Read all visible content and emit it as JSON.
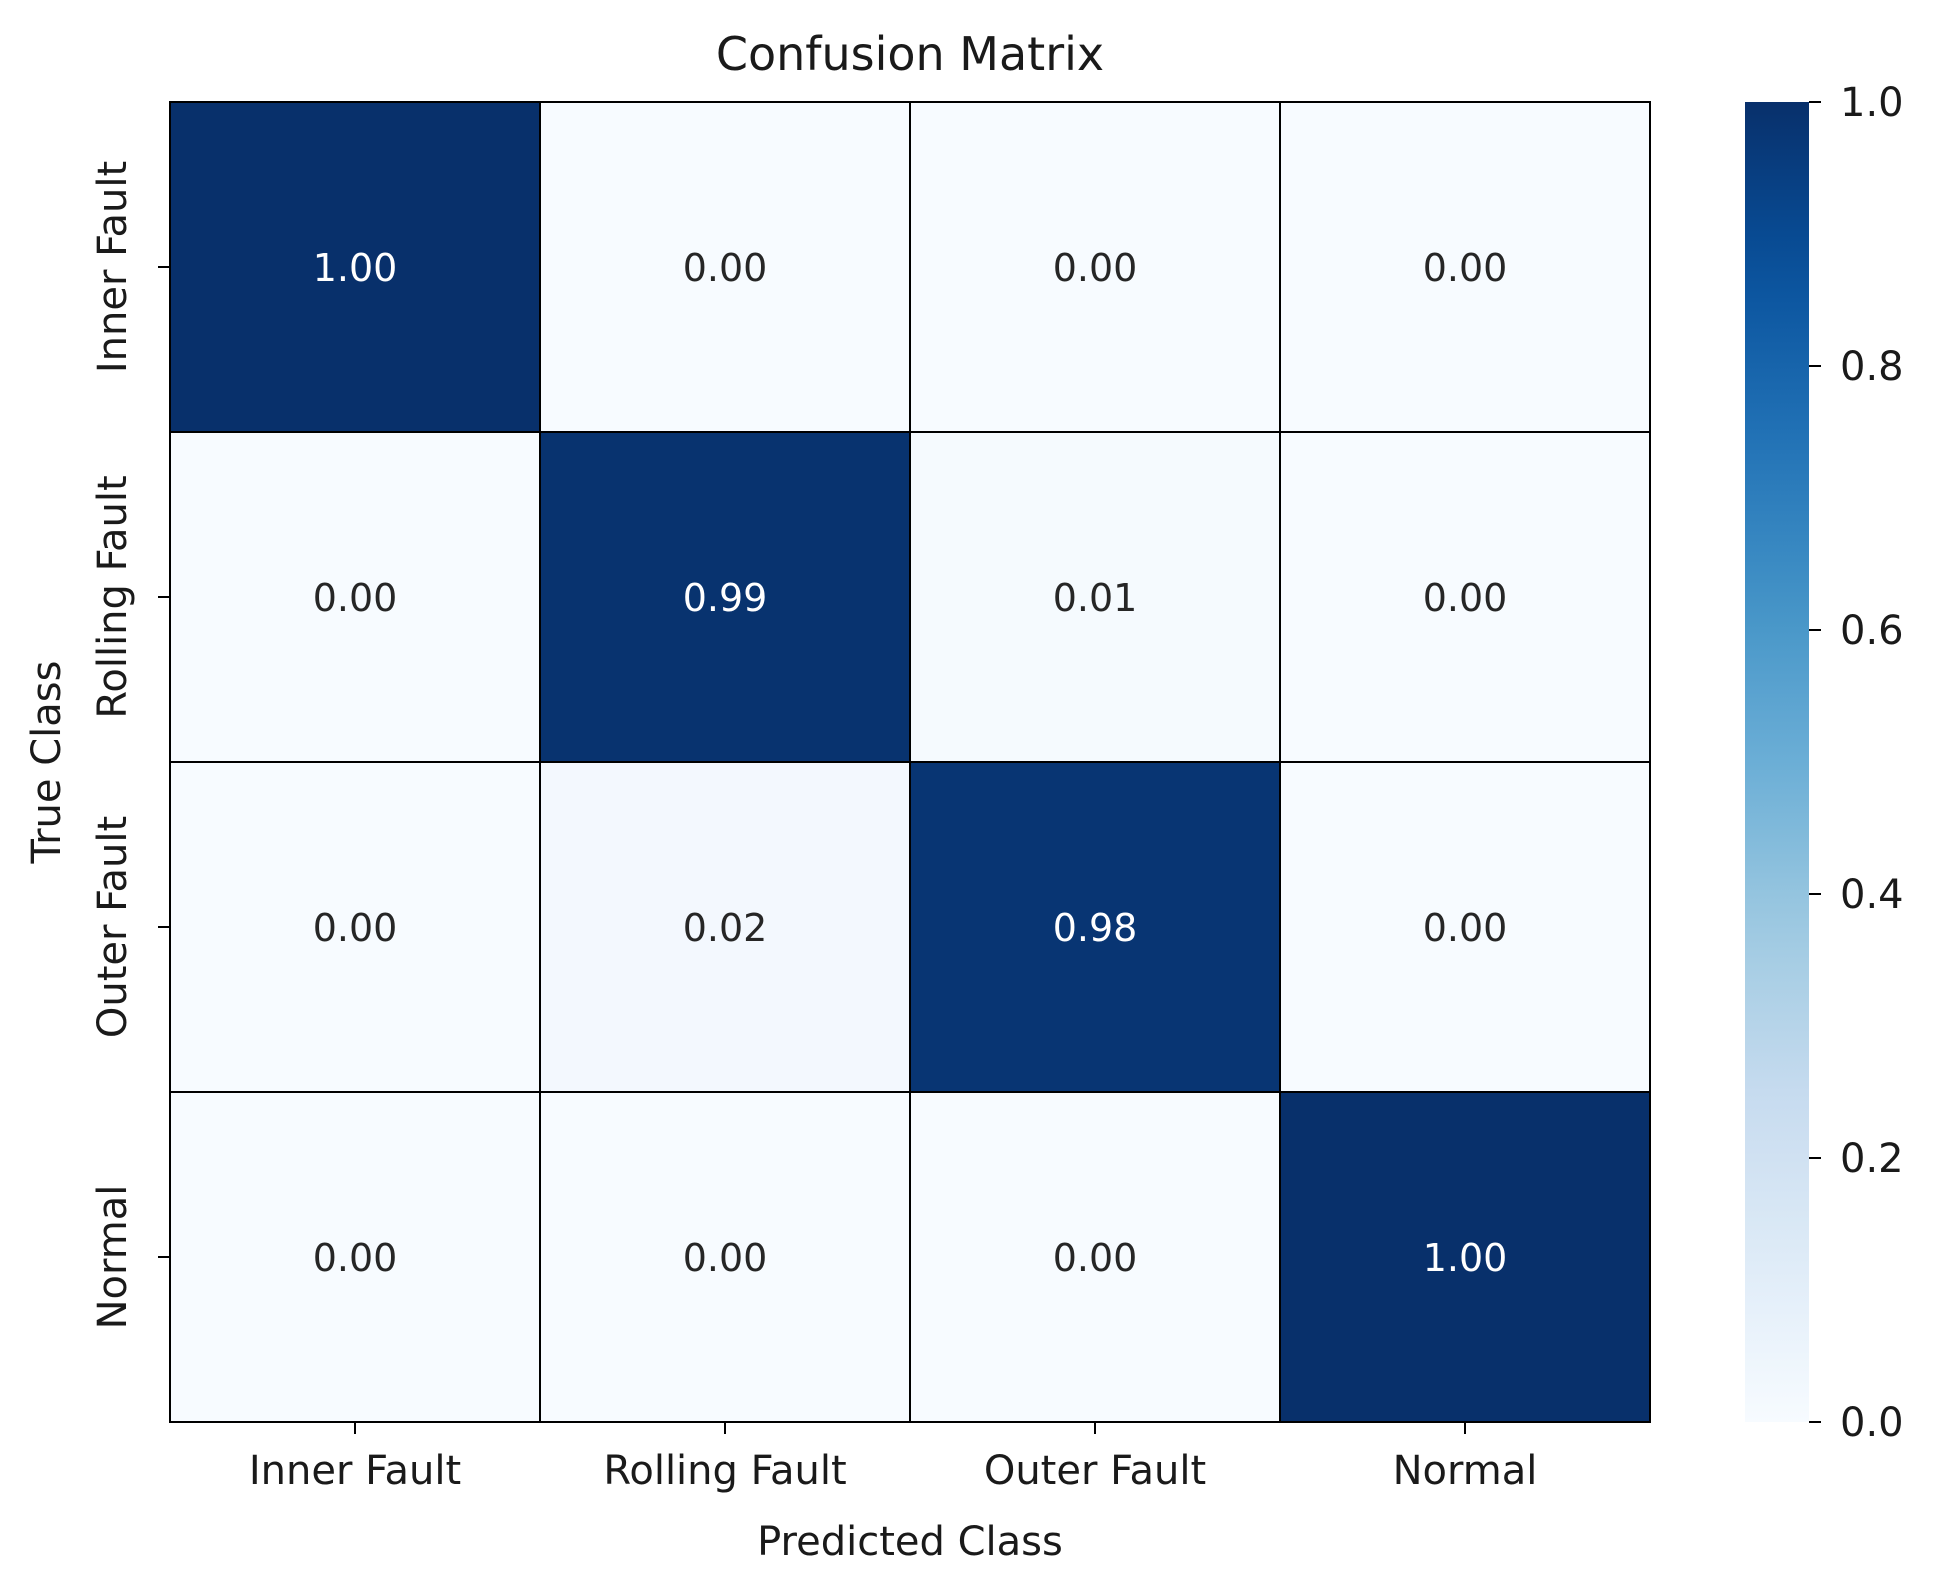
{
  "chart_data": {
    "type": "heatmap",
    "title": "Confusion Matrix",
    "xlabel": "Predicted Class",
    "ylabel": "True Class",
    "x_categories": [
      "Inner Fault",
      "Rolling Fault",
      "Outer Fault",
      "Normal"
    ],
    "y_categories": [
      "Inner Fault",
      "Rolling Fault",
      "Outer Fault",
      "Normal"
    ],
    "values": [
      [
        1.0,
        0.0,
        0.0,
        0.0
      ],
      [
        0.0,
        0.99,
        0.01,
        0.0
      ],
      [
        0.0,
        0.02,
        0.98,
        0.0
      ],
      [
        0.0,
        0.0,
        0.0,
        1.0
      ]
    ],
    "value_format": "2 decimals",
    "colormap": "Blues",
    "colorbar": {
      "range": [
        0.0,
        1.0
      ],
      "ticks": [
        "0.0",
        "0.2",
        "0.4",
        "0.6",
        "0.8",
        "1.0"
      ]
    },
    "cell_border_color": "#000000"
  }
}
